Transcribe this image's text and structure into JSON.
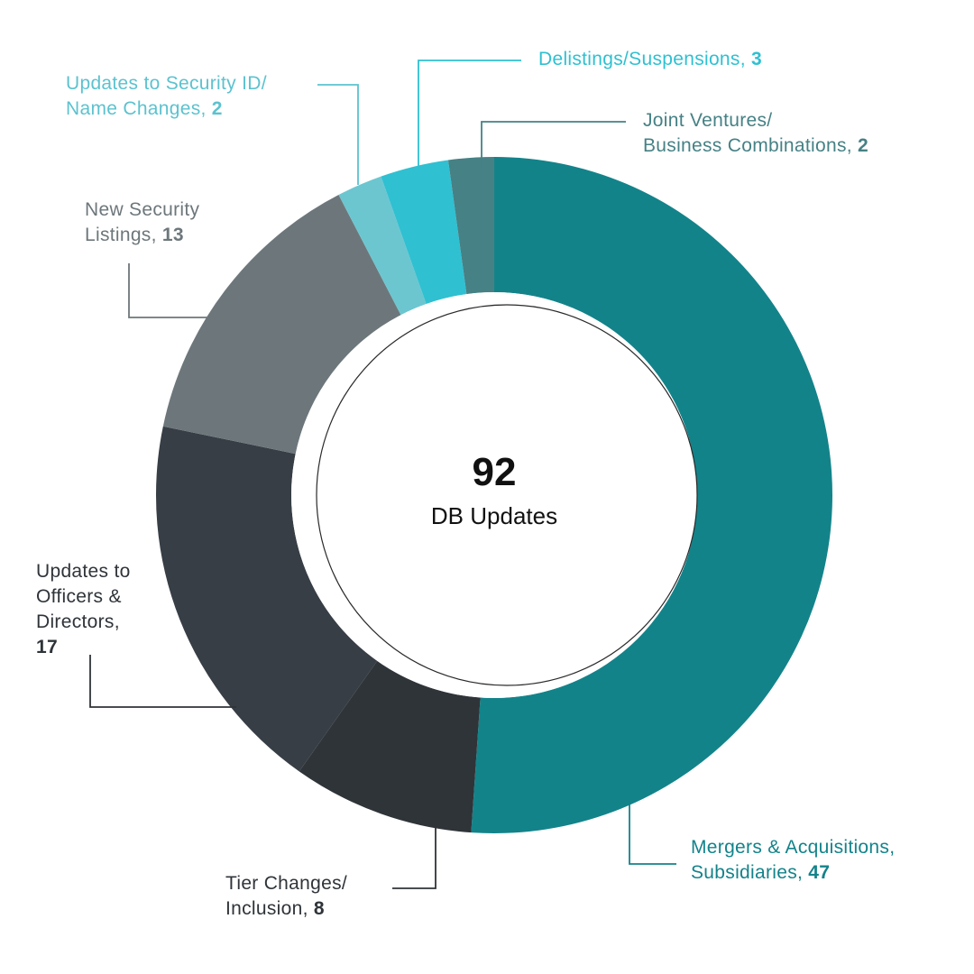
{
  "chart_data": {
    "type": "pie",
    "donut": true,
    "center": {
      "value": "92",
      "label": "DB Updates"
    },
    "slices": [
      {
        "label": "Mergers & Acquisitions, Subsidiaries",
        "label_lines": [
          "Mergers & Acquisitions,",
          "Subsidiaries,"
        ],
        "value": 47,
        "value_text": "47",
        "color": "#13838a",
        "text_color": "#13838a"
      },
      {
        "label": "Tier Changes/ Inclusion",
        "label_lines": [
          "Tier Changes/",
          "Inclusion,"
        ],
        "value": 8,
        "value_text": "8",
        "color": "#2f3439",
        "text_color": "#2f3439"
      },
      {
        "label": "Updates to Officers & Directors",
        "label_lines": [
          "Updates to",
          "Officers &",
          "Directors,"
        ],
        "value": 17,
        "value_text": "17",
        "color": "#373e45",
        "text_color": "#2f3439"
      },
      {
        "label": "New Security Listings",
        "label_lines": [
          "New Security",
          "Listings,"
        ],
        "value": 13,
        "value_text": "13",
        "color": "#6d777b",
        "text_color": "#6d777b"
      },
      {
        "label": "Updates to Security ID/ Name Changes",
        "label_lines": [
          "Updates to Security ID/",
          "Name Changes,"
        ],
        "value": 2,
        "value_text": "2",
        "color": "#6cc6d0",
        "text_color": "#5cc2cf"
      },
      {
        "label": "Delistings/Suspensions",
        "label_lines": [
          "Delistings/Suspensions,"
        ],
        "value": 3,
        "value_text": "3",
        "color": "#2fc0d1",
        "text_color": "#2fc0d1"
      },
      {
        "label": "Joint Ventures/ Business Combinations",
        "label_lines": [
          "Joint Ventures/",
          "Business Combinations,"
        ],
        "value": 2,
        "value_text": "2",
        "color": "#468185",
        "text_color": "#468185"
      }
    ]
  }
}
